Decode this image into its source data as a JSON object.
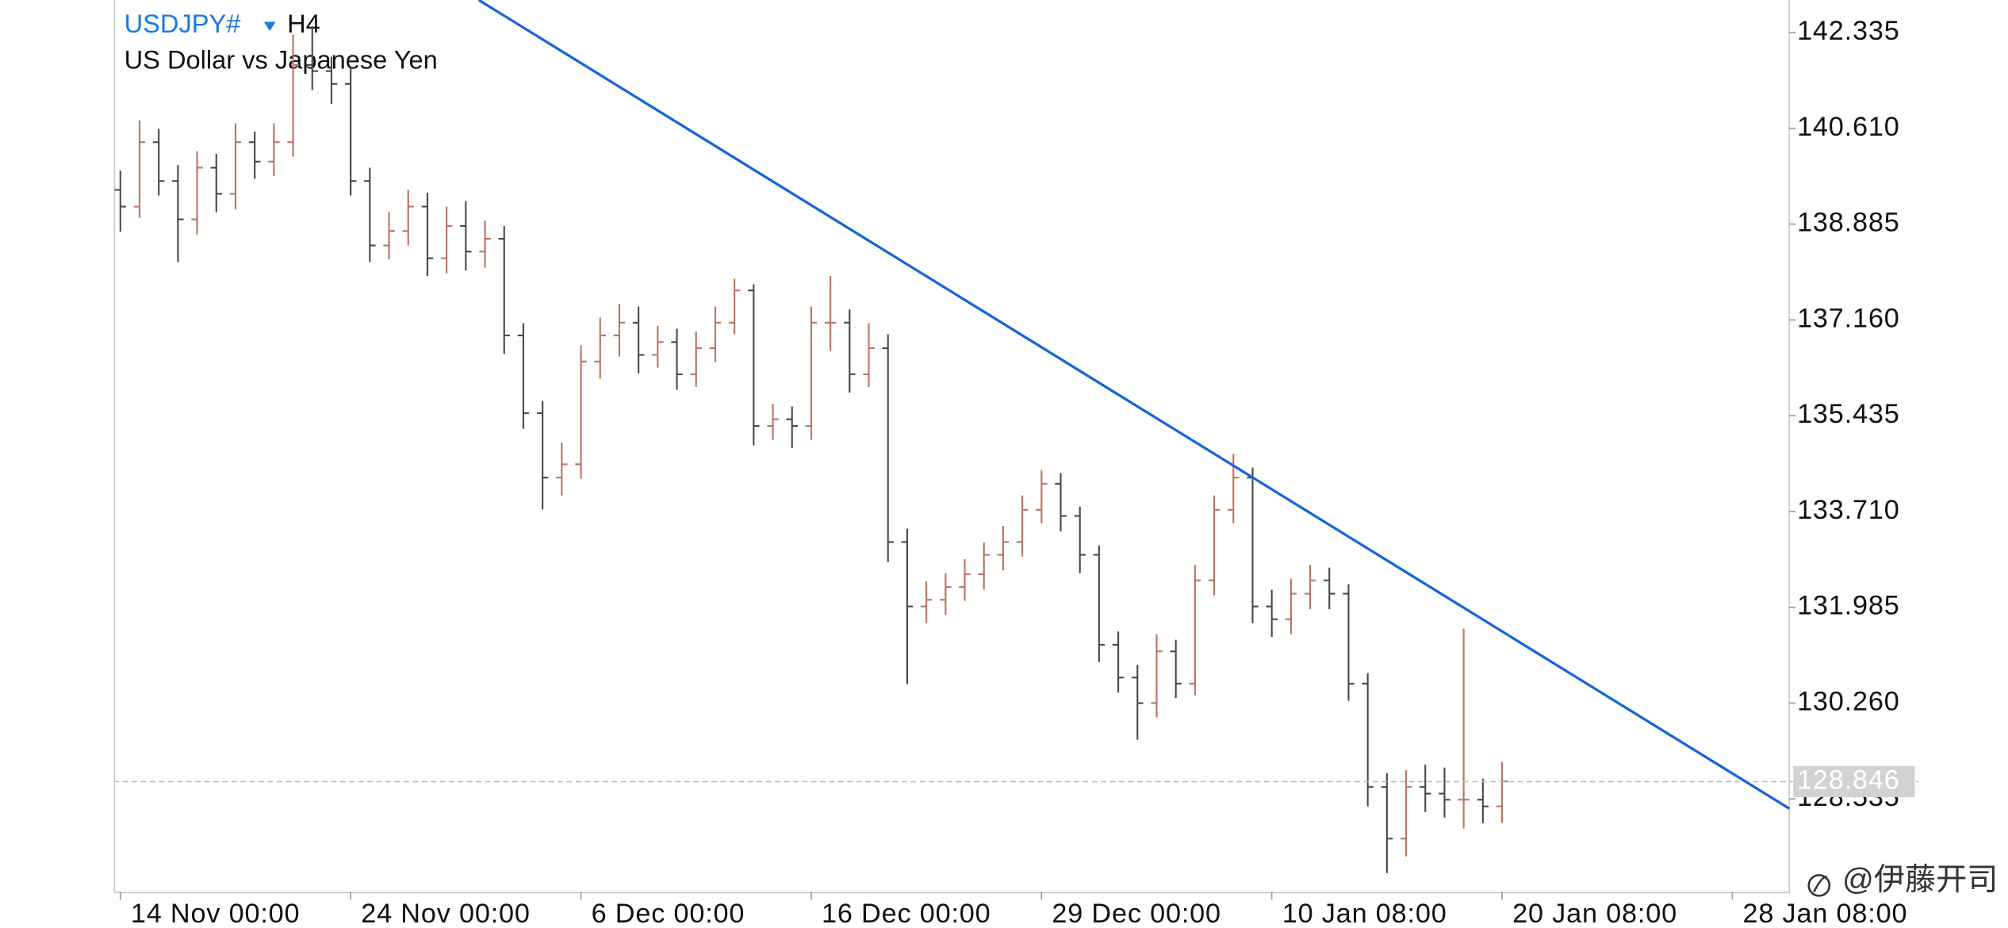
{
  "chart_data": {
    "type": "ohlc",
    "title": "USDJPY#",
    "timeframe": "H4",
    "subtitle": "US Dollar vs Japanese Yen",
    "watermark": "@伊藤开司",
    "up_color": "#b9765f",
    "down_color": "#4a4a4a",
    "open": [
      139.5,
      139.2,
      140.36,
      139.66,
      138.97,
      139.9,
      139.43,
      140.36,
      140.01,
      140.36,
      141.75,
      141.64,
      141.41,
      139.66,
      138.5,
      138.76,
      139.2,
      138.27,
      138.85,
      138.39,
      138.62,
      136.88,
      135.48,
      134.32,
      134.56,
      136.41,
      136.88,
      137.11,
      136.53,
      136.76,
      136.18,
      136.65,
      137.11,
      137.69,
      135.25,
      135.37,
      135.25,
      137.11,
      137.11,
      136.18,
      136.65,
      133.16,
      132.0,
      132.12,
      132.35,
      132.58,
      132.93,
      133.16,
      133.74,
      134.21,
      133.63,
      132.93,
      131.31,
      130.72,
      130.26,
      131.19,
      130.61,
      132.47,
      133.74,
      134.32,
      132.0,
      131.77,
      132.23,
      132.47,
      132.23,
      130.61,
      128.75,
      127.82,
      128.75,
      128.63,
      128.52,
      128.52,
      128.4
    ],
    "high": [
      139.85,
      140.75,
      140.6,
      139.95,
      140.2,
      140.15,
      140.7,
      140.55,
      140.7,
      142.3,
      142.45,
      141.9,
      141.7,
      139.9,
      139.1,
      139.5,
      139.45,
      139.2,
      139.3,
      138.95,
      138.85,
      137.1,
      135.7,
      134.95,
      136.7,
      137.2,
      137.45,
      137.4,
      137.05,
      137.0,
      136.95,
      137.4,
      137.9,
      137.8,
      135.65,
      135.6,
      137.4,
      137.95,
      137.35,
      137.1,
      136.9,
      133.4,
      132.45,
      132.6,
      132.85,
      133.15,
      133.45,
      134.0,
      134.45,
      134.4,
      133.8,
      133.1,
      131.55,
      130.95,
      131.5,
      131.4,
      132.75,
      134.0,
      134.75,
      134.5,
      132.3,
      132.5,
      132.75,
      132.7,
      132.4,
      130.8,
      129.0,
      129.05,
      129.15,
      129.1,
      131.6,
      128.9,
      129.2
    ],
    "low": [
      138.75,
      139.0,
      139.4,
      138.2,
      138.7,
      139.1,
      139.15,
      139.7,
      139.75,
      140.1,
      141.3,
      141.05,
      139.4,
      138.2,
      138.25,
      138.5,
      137.95,
      138.0,
      138.05,
      138.1,
      136.55,
      135.2,
      133.75,
      134.0,
      134.3,
      136.1,
      136.5,
      136.2,
      136.3,
      135.9,
      135.95,
      136.4,
      136.9,
      134.9,
      135.0,
      134.85,
      135.0,
      136.6,
      135.85,
      135.95,
      132.8,
      130.6,
      131.7,
      131.85,
      132.1,
      132.3,
      132.65,
      132.9,
      133.5,
      133.35,
      132.6,
      131.0,
      130.45,
      129.6,
      130.0,
      130.35,
      130.4,
      132.2,
      133.5,
      131.7,
      131.45,
      131.5,
      131.95,
      131.95,
      130.3,
      128.4,
      127.2,
      127.5,
      128.3,
      128.2,
      128.0,
      128.1,
      128.1
    ],
    "close": [
      139.2,
      140.36,
      139.66,
      138.97,
      139.9,
      139.43,
      140.36,
      140.01,
      140.36,
      141.75,
      141.64,
      141.41,
      139.66,
      138.5,
      138.76,
      139.2,
      138.27,
      138.85,
      138.39,
      138.62,
      136.88,
      135.48,
      134.32,
      134.56,
      136.41,
      136.88,
      137.11,
      136.53,
      136.76,
      136.18,
      136.65,
      137.11,
      137.69,
      135.25,
      135.37,
      135.25,
      137.11,
      137.11,
      136.18,
      136.65,
      133.16,
      132.0,
      132.12,
      132.35,
      132.58,
      132.93,
      133.16,
      133.74,
      134.21,
      133.63,
      132.93,
      131.31,
      130.72,
      130.26,
      131.19,
      130.61,
      132.47,
      133.74,
      134.32,
      132.0,
      131.77,
      132.23,
      132.47,
      132.23,
      130.61,
      128.75,
      127.82,
      128.75,
      128.63,
      128.52,
      128.52,
      128.4,
      128.85
    ],
    "xlim": [
      -0.34,
      86.97
    ],
    "xticks": [
      {
        "value": 0,
        "label": "14 Nov 00:00"
      },
      {
        "value": 12,
        "label": "24 Nov 00:00"
      },
      {
        "value": 24,
        "label": "6 Dec 00:00"
      },
      {
        "value": 36,
        "label": "16 Dec 00:00"
      },
      {
        "value": 48,
        "label": "29 Dec 00:00"
      },
      {
        "value": 60,
        "label": "10 Jan 08:00"
      },
      {
        "value": 72,
        "label": "20 Jan 08:00"
      },
      {
        "value": 84,
        "label": "28 Jan 08:00"
      }
    ],
    "ylim": [
      126.86,
      142.92
    ],
    "yticks": [
      142.335,
      {
        "value": 140.61,
        "label": "140.610"
      },
      138.885,
      {
        "value": 137.16,
        "label": "137.160"
      },
      135.435,
      {
        "value": 133.71,
        "label": "133.710"
      },
      131.985,
      {
        "value": 130.26,
        "label": "130.260"
      },
      128.535
    ],
    "current_price": 128.846,
    "trendline": {
      "x": [
        18.67,
        86.97
      ],
      "values": [
        142.92,
        128.36
      ],
      "color": "#1565d8"
    }
  }
}
